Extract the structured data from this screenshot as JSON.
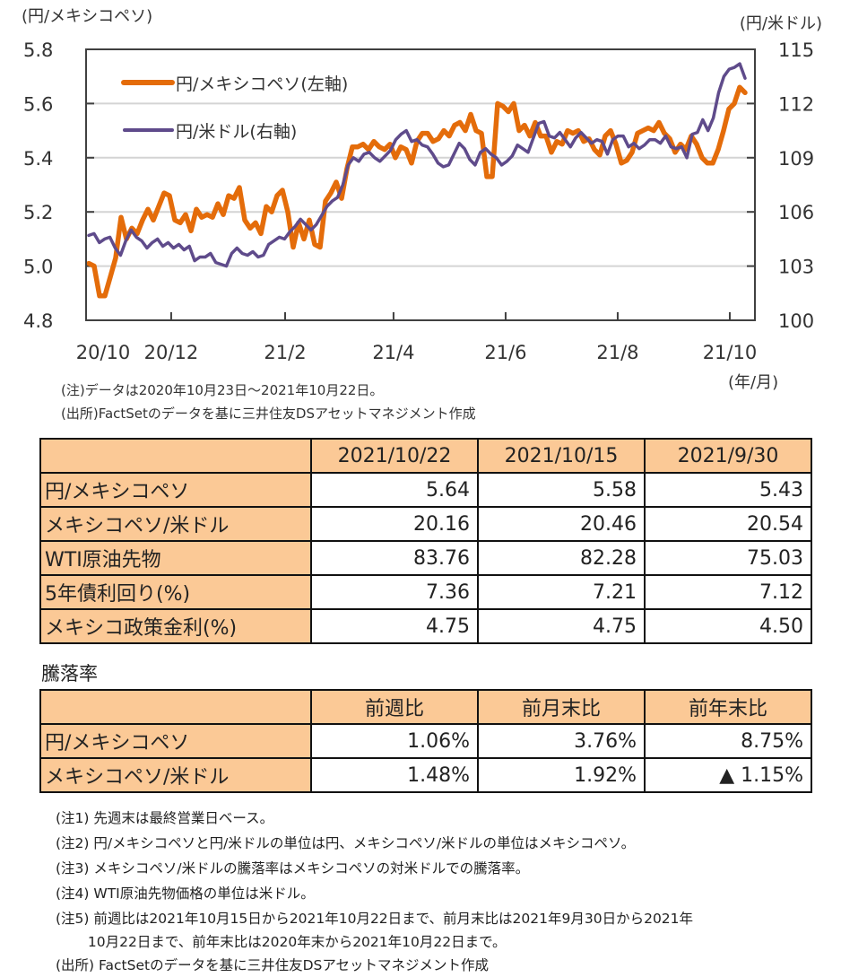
{
  "chart_data": {
    "type": "line",
    "title": "",
    "left_axis": {
      "label": "(円/メキシコペソ)",
      "ticks": [
        "5.8",
        "5.6",
        "5.4",
        "5.2",
        "5.0",
        "4.8"
      ],
      "range": [
        4.8,
        5.8
      ]
    },
    "right_axis": {
      "label": "(円/米ドル)",
      "ticks": [
        "115",
        "112",
        "109",
        "106",
        "103",
        "100"
      ],
      "range": [
        100,
        115
      ]
    },
    "x_axis": {
      "label": "(年/月)",
      "ticks": [
        "20/10",
        "20/12",
        "21/2",
        "21/4",
        "21/6",
        "21/8",
        "21/10"
      ],
      "range": [
        "2020/10/23",
        "2021/10/22"
      ]
    },
    "grid": true,
    "legend": {
      "placement": "top-left"
    },
    "series": [
      {
        "name": "円/メキシコペソ(左軸)",
        "axis": "left",
        "color": "#e46c0a",
        "values": [
          5.01,
          5.0,
          4.89,
          4.89,
          4.96,
          5.03,
          5.18,
          5.1,
          5.14,
          5.12,
          5.17,
          5.21,
          5.17,
          5.22,
          5.27,
          5.26,
          5.17,
          5.16,
          5.19,
          5.13,
          5.21,
          5.18,
          5.19,
          5.18,
          5.23,
          5.19,
          5.26,
          5.25,
          5.29,
          5.17,
          5.14,
          5.16,
          5.12,
          5.22,
          5.2,
          5.26,
          5.28,
          5.2,
          5.07,
          5.16,
          5.1,
          5.17,
          5.08,
          5.07,
          5.24,
          5.27,
          5.31,
          5.25,
          5.36,
          5.44,
          5.44,
          5.45,
          5.43,
          5.46,
          5.44,
          5.43,
          5.45,
          5.4,
          5.44,
          5.43,
          5.38,
          5.46,
          5.49,
          5.49,
          5.46,
          5.47,
          5.5,
          5.48,
          5.52,
          5.53,
          5.5,
          5.56,
          5.5,
          5.49,
          5.33,
          5.33,
          5.6,
          5.59,
          5.57,
          5.6,
          5.5,
          5.52,
          5.48,
          5.53,
          5.48,
          5.48,
          5.42,
          5.46,
          5.45,
          5.5,
          5.49,
          5.5,
          5.46,
          5.47,
          5.43,
          5.41,
          5.48,
          5.5,
          5.45,
          5.38,
          5.39,
          5.42,
          5.49,
          5.5,
          5.51,
          5.5,
          5.53,
          5.49,
          5.47,
          5.42,
          5.45,
          5.43,
          5.48,
          5.45,
          5.4,
          5.38,
          5.38,
          5.43,
          5.5,
          5.58,
          5.6,
          5.66,
          5.64
        ]
      },
      {
        "name": "円/米ドル(右軸)",
        "axis": "right",
        "color": "#5f4b8b",
        "values": [
          104.7,
          104.8,
          104.3,
          104.5,
          104.6,
          104.0,
          103.6,
          104.4,
          105.0,
          104.6,
          104.4,
          104.0,
          104.3,
          104.5,
          104.1,
          104.3,
          104.0,
          104.2,
          103.9,
          104.1,
          103.3,
          103.5,
          103.5,
          103.7,
          103.2,
          103.1,
          103.0,
          103.7,
          104.0,
          103.7,
          103.6,
          103.8,
          103.5,
          103.6,
          104.2,
          104.4,
          104.6,
          104.5,
          104.9,
          105.2,
          105.6,
          105.3,
          105.0,
          105.3,
          105.8,
          106.3,
          106.6,
          106.8,
          107.5,
          108.6,
          109.0,
          108.8,
          109.2,
          109.3,
          109.0,
          108.8,
          109.1,
          109.4,
          110.0,
          110.3,
          110.5,
          109.9,
          110.0,
          109.7,
          109.6,
          109.2,
          108.7,
          108.5,
          108.6,
          109.2,
          109.8,
          109.5,
          108.9,
          108.6,
          109.3,
          109.5,
          109.2,
          109.0,
          108.6,
          108.8,
          109.1,
          109.7,
          109.5,
          109.3,
          110.1,
          110.9,
          111.0,
          110.2,
          110.1,
          110.4,
          110.0,
          109.6,
          110.1,
          110.4,
          110.1,
          109.8,
          110.0,
          109.9,
          109.2,
          110.0,
          110.2,
          110.2,
          109.6,
          109.8,
          109.5,
          109.7,
          110.0,
          110.0,
          109.8,
          110.2,
          109.6,
          109.5,
          109.6,
          109.0,
          110.3,
          110.4,
          111.1,
          110.5,
          111.2,
          112.6,
          113.5,
          113.9,
          114.0,
          114.2,
          113.4
        ]
      }
    ],
    "notes": [
      "(注)データは2020年10月23日～2021年10月22日。",
      "(出所)FactSetのデータを基に三井住友DSアセットマネジメント作成"
    ]
  },
  "table1": {
    "headers": [
      "",
      "2021/10/22",
      "2021/10/15",
      "2021/9/30"
    ],
    "rows": [
      {
        "label": "円/メキシコペソ",
        "values": [
          "5.64",
          "5.58",
          "5.43"
        ]
      },
      {
        "label": "メキシコペソ/米ドル",
        "values": [
          "20.16",
          "20.46",
          "20.54"
        ]
      },
      {
        "label": "WTI原油先物",
        "values": [
          "83.76",
          "82.28",
          "75.03"
        ]
      },
      {
        "label": "5年債利回り(%)",
        "values": [
          "7.36",
          "7.21",
          "7.12"
        ]
      },
      {
        "label": "メキシコ政策金利(%)",
        "values": [
          "4.75",
          "4.75",
          "4.50"
        ]
      }
    ]
  },
  "table2": {
    "title": "騰落率",
    "headers": [
      "",
      "前週比",
      "前月末比",
      "前年末比"
    ],
    "rows": [
      {
        "label": "円/メキシコペソ",
        "values": [
          "1.06%",
          "3.76%",
          "8.75%"
        ]
      },
      {
        "label": "メキシコペソ/米ドル",
        "values": [
          "1.48%",
          "1.92%",
          "▲ 1.15%"
        ]
      }
    ]
  },
  "footnotes": [
    "(注1) 先週末は最終営業日ベース。",
    "(注2) 円/メキシコペソと円/米ドルの単位は円、メキシコペソ/米ドルの単位はメキシコペソ。",
    "(注3) メキシコペソ/米ドルの騰落率はメキシコペソの対米ドルでの騰落率。",
    "(注4) WTI原油先物価格の単位は米ドル。",
    "(注5) 前週比は2021年10月15日から2021年10月22日まで、前月末比は2021年9月30日から2021年",
    "　　 10月22日まで、前年末比は2020年末から2021年10月22日まで。",
    "(出所) FactSetのデータを基に三井住友DSアセットマネジメント作成"
  ]
}
